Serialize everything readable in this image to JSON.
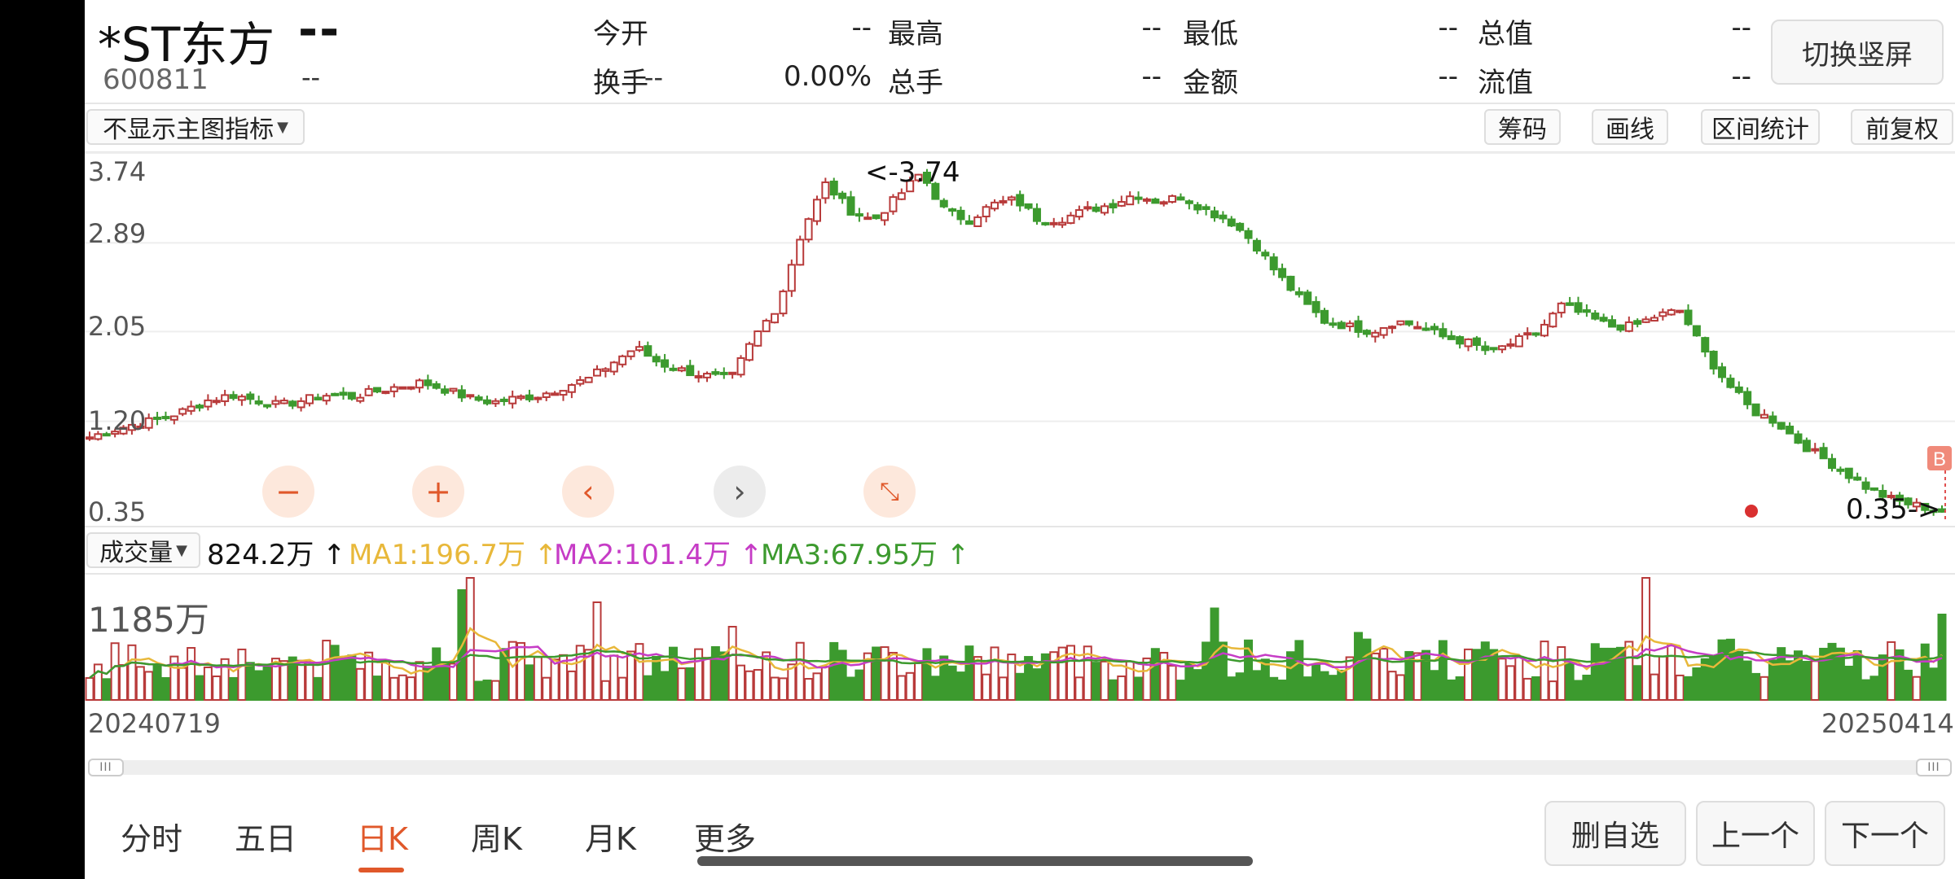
{
  "header": {
    "stock_name": "*ST东方",
    "price": "--",
    "code": "600811",
    "change": "--",
    "change_pct": "--",
    "switch_label": "切换竖屏",
    "quotes_row1": [
      {
        "label": "今开",
        "value": "--"
      },
      {
        "label": "最高",
        "value": "--"
      },
      {
        "label": "最低",
        "value": "--"
      },
      {
        "label": "总值",
        "value": "--"
      }
    ],
    "quotes_row2": [
      {
        "label": "换手",
        "value": "0.00%"
      },
      {
        "label": "总手",
        "value": "--"
      },
      {
        "label": "金额",
        "value": "--"
      },
      {
        "label": "流值",
        "value": "--"
      }
    ]
  },
  "toolbar": {
    "indicator_select": "不显示主图指标",
    "buttons": [
      "筹码",
      "画线",
      "区间统计",
      "前复权"
    ]
  },
  "controls": {
    "zoom_out": "−",
    "zoom_in": "+",
    "prev": "‹",
    "next": "›",
    "collapse": "⤡"
  },
  "volume": {
    "select": "成交量",
    "value": "824.2万",
    "ma1": "MA1:196.7万",
    "ma2": "MA2:101.4万",
    "ma3": "MA3:67.95万",
    "max_label": "1185万"
  },
  "chart_data": {
    "type": "candlestick",
    "y_ticks": [
      "3.74",
      "2.89",
      "2.05",
      "1.20",
      "0.35"
    ],
    "ylim": [
      0.35,
      3.74
    ],
    "high_annotation": "<-3.74",
    "low_annotation": "0.35->",
    "marker_label": "B",
    "start_date": "20240719",
    "end_date": "20250414",
    "close_path": [
      1.05,
      1.12,
      1.18,
      1.22,
      1.3,
      1.4,
      1.45,
      1.4,
      1.35,
      1.4,
      1.45,
      1.43,
      1.48,
      1.53,
      1.57,
      1.5,
      1.42,
      1.38,
      1.42,
      1.45,
      1.53,
      1.6,
      1.75,
      1.9,
      1.75,
      1.68,
      1.63,
      1.6,
      2.0,
      2.3,
      3.0,
      3.45,
      3.2,
      3.1,
      3.32,
      3.55,
      3.2,
      3.1,
      3.25,
      3.3,
      3.1,
      3.12,
      3.2,
      3.25,
      3.35,
      3.28,
      3.33,
      3.2,
      3.1,
      2.9,
      2.6,
      2.35,
      2.15,
      2.1,
      2.05,
      2.15,
      2.1,
      2.0,
      1.95,
      1.85,
      1.95,
      2.05,
      2.3,
      2.2,
      2.1,
      2.1,
      2.2,
      2.25,
      1.85,
      1.55,
      1.3,
      1.2,
      1.0,
      0.85,
      0.7,
      0.55,
      0.45,
      0.4,
      0.35
    ],
    "volume_series": {
      "unit": "万",
      "max": 1185,
      "latest": 824.2,
      "ma1": 196.7,
      "ma2": 101.4,
      "ma3": 67.95
    },
    "colors": {
      "up": "#b83a3a",
      "down": "#3c9a2e",
      "ma1": "#e8b83a",
      "ma2": "#c63cc6",
      "ma3": "#3c9a2e"
    }
  },
  "tabs": {
    "items": [
      "分时",
      "五日",
      "日K",
      "周K",
      "月K",
      "更多"
    ],
    "active": "日K"
  },
  "nav": {
    "favorite": "删自选",
    "prev": "上一个",
    "next": "下一个"
  }
}
